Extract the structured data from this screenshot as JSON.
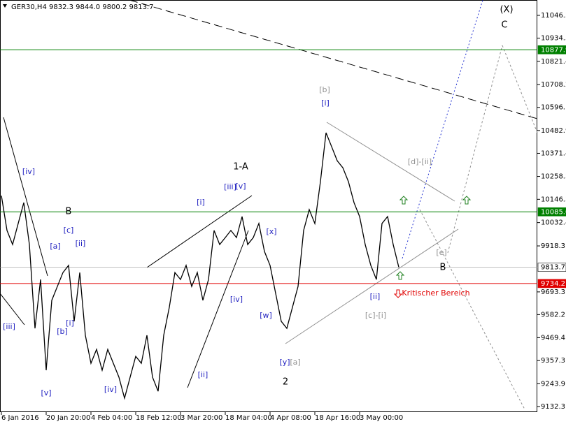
{
  "chart_data": {
    "type": "line",
    "title": "GER30,H4  9832.3 9844.0 9800.2 9813.7",
    "categories": [
      "6 Jan 2016",
      null,
      null,
      null,
      null,
      null,
      null,
      null,
      "20 Jan 20:00",
      null,
      null,
      null,
      null,
      null,
      null,
      null,
      "4 Feb 04:00",
      null,
      null,
      null,
      null,
      null,
      null,
      null,
      "18 Feb 12:00",
      null,
      null,
      null,
      null,
      null,
      null,
      null,
      "3 Mar 20:00",
      null,
      null,
      null,
      null,
      null,
      null,
      null,
      "18 Mar 04:00",
      null,
      null,
      null,
      null,
      null,
      null,
      null,
      "4 Apr 08:00",
      null,
      null,
      null,
      null,
      null,
      null,
      null,
      "18 Apr 16:00",
      null,
      null,
      null,
      null,
      null,
      null,
      null,
      "3 May 00:00",
      null,
      null,
      null,
      null,
      null,
      null,
      null
    ],
    "series": [
      {
        "name": "GER30,H4",
        "color": "#000000",
        "values": [
          10164,
          9994,
          9925,
          10028,
          10130,
          9925,
          9515,
          9754,
          9310,
          9652,
          9720,
          9788,
          9823,
          9549,
          9788,
          9481,
          9344,
          9412,
          9310,
          9412,
          9344,
          9276,
          9173,
          9276,
          9378,
          9344,
          9481,
          9276,
          9207,
          9481,
          9618,
          9788,
          9754,
          9823,
          9720,
          9788,
          9652,
          9754,
          9994,
          9925,
          9959,
          9994,
          9959,
          10062,
          9925,
          9959,
          10028,
          9891,
          9823,
          9686,
          9549,
          9515,
          9618,
          9720,
          9994,
          10096,
          10028,
          10233,
          10472,
          10404,
          10335,
          10301,
          10233,
          10130,
          10062,
          9925,
          9823,
          9754,
          10028,
          10062,
          9925,
          9814
        ]
      }
    ],
    "ylim": [
      9105,
      11121.5
    ],
    "yticks": [
      11046.3,
      10934.5,
      10821.4,
      10708.2,
      10596.1,
      10482.9,
      10371.4,
      10258.3,
      10146.3,
      10032.4,
      9918.3,
      9693.3,
      9582.2,
      9469.4,
      9357.3,
      9243.9,
      9132.3
    ],
    "hlines": [
      {
        "value": 10877.9,
        "color": "#008000"
      },
      {
        "value": {
          "value": 10085,
          "label": "10085.0"
        },
        "color": "#008000"
      },
      {
        "value": 9734.2,
        "color": "#e00000"
      },
      {
        "value": 9813.7,
        "color": "#000000"
      }
    ],
    "annotations": [
      {
        "text": "(X)",
        "color": "#000000"
      },
      {
        "text": "C",
        "color": "#000000"
      },
      {
        "text": "[b]",
        "color": "#909090"
      },
      {
        "text": "[i]",
        "color": "#2020c0"
      },
      {
        "text": "[d]-[ii]",
        "color": "#909090"
      },
      {
        "text": "1-A",
        "color": "#000000"
      },
      {
        "text": "[iv]",
        "color": "#2020c0"
      },
      {
        "text": "[iii]",
        "color": "#2020c0"
      },
      {
        "text": "[v]",
        "color": "#2020c0"
      },
      {
        "text": "[i]",
        "color": "#2020c0"
      },
      {
        "text": "B",
        "color": "#000000"
      },
      {
        "text": "[c]",
        "color": "#2020c0"
      },
      {
        "text": "[a]",
        "color": "#2020c0"
      },
      {
        "text": "[ii]",
        "color": "#2020c0"
      },
      {
        "text": "[x]",
        "color": "#2020c0"
      },
      {
        "text": "[e]",
        "color": "#909090"
      },
      {
        "text": "B",
        "color": "#000000"
      },
      {
        "text": "Kritischer Bereich",
        "color": "#e00000"
      },
      {
        "text": "[ii]",
        "color": "#2020c0"
      },
      {
        "text": "[iv]",
        "color": "#2020c0"
      },
      {
        "text": "[w]",
        "color": "#2020c0"
      },
      {
        "text": "[c]-[i]",
        "color": "#909090"
      },
      {
        "text": "[i]",
        "color": "#2020c0"
      },
      {
        "text": "[iii]",
        "color": "#2020c0"
      },
      {
        "text": "[b]",
        "color": "#2020c0"
      },
      {
        "text": "[y]",
        "color": "#2020c0"
      },
      {
        "text": "[a]",
        "color": "#909090"
      },
      {
        "text": "[ii]",
        "color": "#2020c0"
      },
      {
        "text": "2",
        "color": "#000000"
      },
      {
        "text": "[iv]",
        "color": "#2020c0"
      },
      {
        "text": "[v]",
        "color": "#2020c0"
      }
    ]
  }
}
